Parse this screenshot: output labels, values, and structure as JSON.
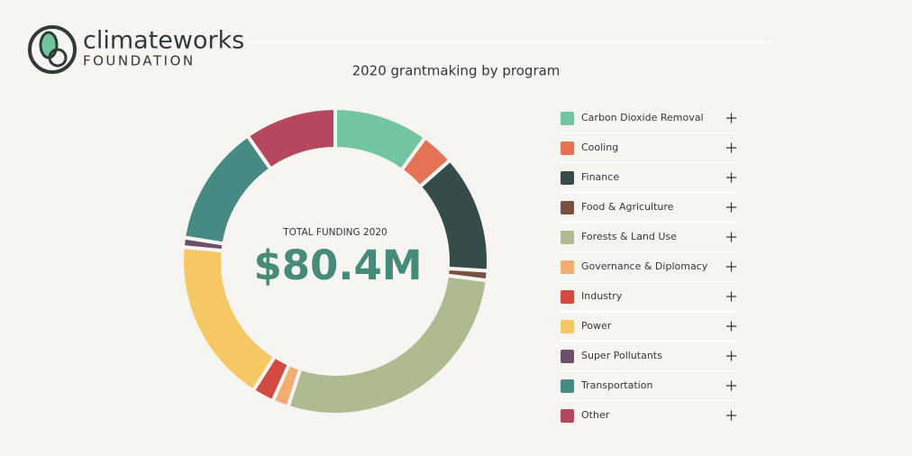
{
  "header": {
    "brand": "climateworks",
    "brand_sub": "FOUNDATION"
  },
  "chart_data": {
    "type": "pie",
    "title": "2020 grantmaking by program",
    "center_label": "TOTAL FUNDING 2020",
    "center_value": "$80.4M",
    "categories": [
      "Carbon Dioxide Removal",
      "Cooling",
      "Finance",
      "Food & Agriculture",
      "Forests & Land Use",
      "Governance & Diplomacy",
      "Industry",
      "Power",
      "Super Pollutants",
      "Transportation",
      "Other"
    ],
    "values": [
      10,
      3.5,
      12.5,
      1,
      28,
      1.7,
      2.3,
      17.5,
      1,
      12.8,
      9.7
    ],
    "colors": [
      "#72c59e",
      "#e47355",
      "#364c4b",
      "#7a5040",
      "#aebb91",
      "#f2ad72",
      "#d34a43",
      "#f6c864",
      "#6e4f6b",
      "#468a83",
      "#b5485f"
    ]
  }
}
